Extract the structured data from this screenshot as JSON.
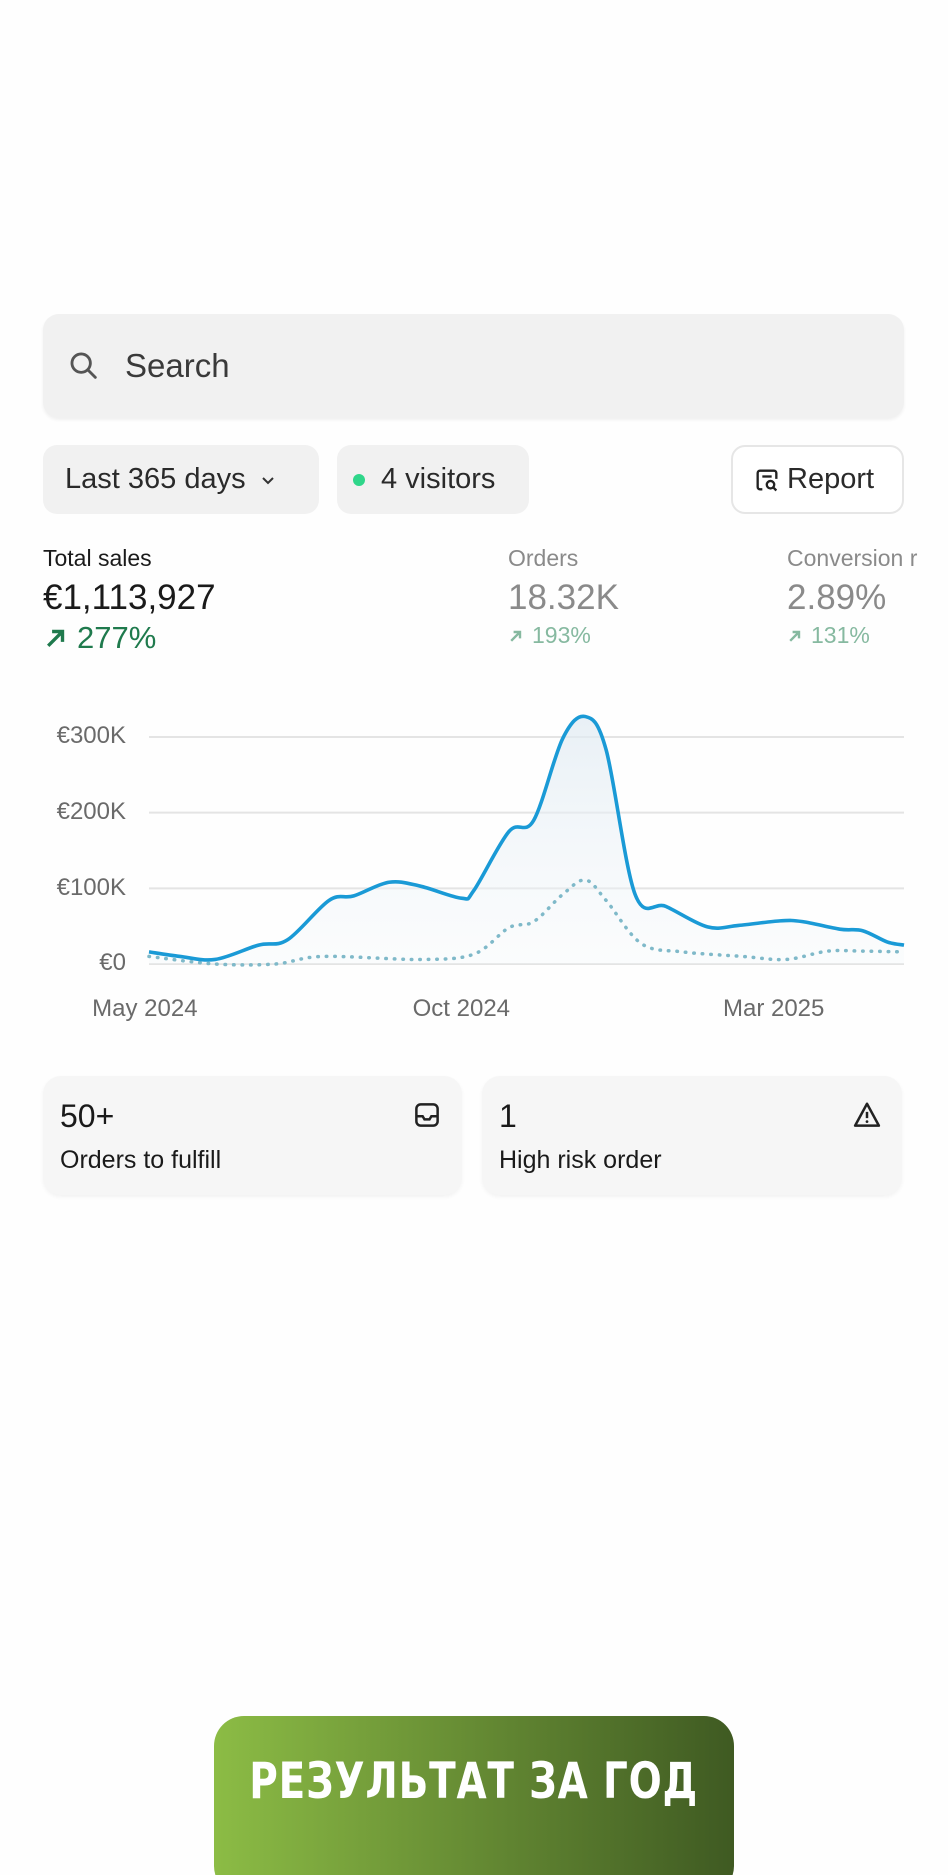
{
  "search": {
    "placeholder": "Search",
    "icon": "search-icon"
  },
  "filters": {
    "range_label": "Last 365 days",
    "visitors_label": "4 visitors",
    "report_label": "Report",
    "live_color": "#2fd68a"
  },
  "metrics": [
    {
      "label": "Total sales",
      "value": "€1,113,927",
      "change": "277%",
      "trend": "up"
    },
    {
      "label": "Orders",
      "value": "18.32K",
      "change": "193%",
      "trend": "up"
    },
    {
      "label": "Conversion r",
      "value": "2.89%",
      "change": "131%",
      "trend": "up"
    }
  ],
  "chart_data": {
    "type": "line",
    "y_ticks": [
      "€300K",
      "€200K",
      "€100K",
      "€0"
    ],
    "x_ticks": [
      {
        "label": "May 2024",
        "date": "2024-05-01"
      },
      {
        "label": "Oct 2024",
        "date": "2024-10-01"
      },
      {
        "label": "Mar 2025",
        "date": "2025-03-01"
      }
    ],
    "ylim": [
      0,
      300000
    ],
    "xlim": [
      "2024-05-03",
      "2025-05-03"
    ],
    "grid": true,
    "series": [
      {
        "style": "solid",
        "color": "#1a9ad6",
        "points": [
          [
            "2024-05-03",
            16000
          ],
          [
            "2024-05-18",
            10000
          ],
          [
            "2024-06-04",
            6000
          ],
          [
            "2024-06-25",
            25000
          ],
          [
            "2024-07-09",
            32000
          ],
          [
            "2024-07-29",
            84000
          ],
          [
            "2024-08-10",
            90000
          ],
          [
            "2024-08-27",
            108000
          ],
          [
            "2024-09-11",
            103000
          ],
          [
            "2024-10-01",
            87000
          ],
          [
            "2024-10-07",
            97000
          ],
          [
            "2024-10-24",
            175000
          ],
          [
            "2024-11-05",
            190000
          ],
          [
            "2024-11-19",
            298000
          ],
          [
            "2024-11-30",
            327000
          ],
          [
            "2024-12-10",
            283000
          ],
          [
            "2024-12-24",
            92000
          ],
          [
            "2025-01-08",
            76000
          ],
          [
            "2025-01-28",
            49000
          ],
          [
            "2025-02-12",
            51000
          ],
          [
            "2025-03-04",
            57000
          ],
          [
            "2025-03-15",
            56000
          ],
          [
            "2025-04-02",
            46000
          ],
          [
            "2025-04-13",
            44000
          ],
          [
            "2025-04-25",
            29000
          ],
          [
            "2025-05-03",
            25000
          ]
        ]
      },
      {
        "style": "dotted",
        "color": "#7fb9c9",
        "points": [
          [
            "2024-05-03",
            10000
          ],
          [
            "2024-06-04",
            0
          ],
          [
            "2024-07-03",
            0
          ],
          [
            "2024-07-26",
            10000
          ],
          [
            "2024-09-11",
            6000
          ],
          [
            "2024-10-07",
            13000
          ],
          [
            "2024-10-24",
            48000
          ],
          [
            "2024-11-05",
            56000
          ],
          [
            "2024-11-19",
            92000
          ],
          [
            "2024-11-30",
            111000
          ],
          [
            "2024-12-10",
            84000
          ],
          [
            "2024-12-27",
            27000
          ],
          [
            "2025-01-16",
            16000
          ],
          [
            "2025-02-14",
            10000
          ],
          [
            "2025-03-07",
            6000
          ],
          [
            "2025-03-27",
            17000
          ],
          [
            "2025-04-13",
            17000
          ],
          [
            "2025-05-03",
            16000
          ]
        ]
      }
    ]
  },
  "cards": [
    {
      "value": "50+",
      "label": "Orders to fulfill",
      "icon": "inbox-icon"
    },
    {
      "value": "1",
      "label": "High risk order",
      "icon": "warning-icon"
    }
  ],
  "cta": {
    "label": "РЕЗУЛЬТАТ ЗА ГОД",
    "gradient": [
      "#8cbc45",
      "#3f5a22"
    ]
  }
}
